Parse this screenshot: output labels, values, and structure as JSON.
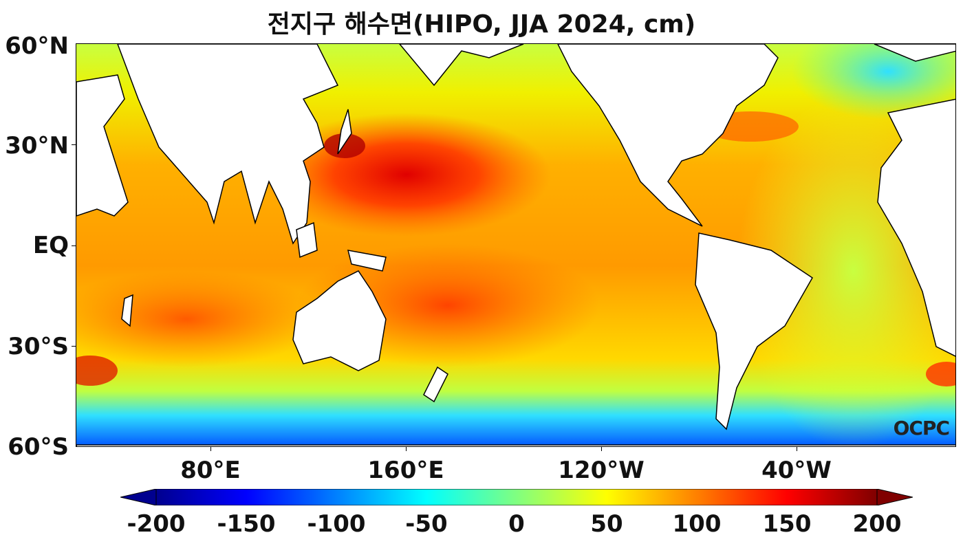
{
  "title": "전지구 해수면(HIPO, JJA 2024, cm)",
  "watermark": "OCPC",
  "y_axis_labels": [
    "60°N",
    "30°N",
    "EQ",
    "30°S",
    "60°S"
  ],
  "x_axis_labels": [
    "80°E",
    "160°E",
    "120°W",
    "40°W"
  ],
  "colorbar": {
    "ticks": [
      "-200",
      "-150",
      "-100",
      "-50",
      "0",
      "50",
      "100",
      "150",
      "200"
    ],
    "min": -200,
    "max": 200,
    "extend": "both",
    "colormap": [
      "#00008f",
      "#0000ff",
      "#0080ff",
      "#00ffff",
      "#80ff80",
      "#ffff00",
      "#ff8000",
      "#ff0000",
      "#800000"
    ]
  },
  "colors": {
    "land": "#ffffff",
    "coast": "#000000",
    "ocean_typical": "#f5c400",
    "ocean_high": "#ff3300",
    "ocean_low": "#0050ff"
  }
}
